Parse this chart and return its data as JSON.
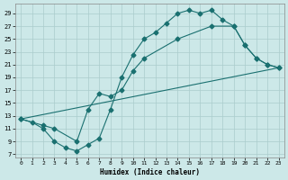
{
  "xlabel": "Humidex (Indice chaleur)",
  "bg_color": "#cce8e8",
  "grid_color": "#aacccc",
  "line_color": "#1a7070",
  "xlim": [
    -0.5,
    23.5
  ],
  "ylim": [
    6.5,
    30.5
  ],
  "xticks": [
    0,
    1,
    2,
    3,
    4,
    5,
    6,
    7,
    8,
    9,
    10,
    11,
    12,
    13,
    14,
    15,
    16,
    17,
    18,
    19,
    20,
    21,
    22,
    23
  ],
  "yticks": [
    7,
    9,
    11,
    13,
    15,
    17,
    19,
    21,
    23,
    25,
    27,
    29
  ],
  "line1_x": [
    0,
    1,
    2,
    3,
    4,
    5,
    6,
    7,
    8,
    9,
    10,
    11,
    12,
    13,
    14,
    15,
    16,
    17,
    18,
    19,
    20,
    21,
    22,
    23
  ],
  "line1_y": [
    12.5,
    12,
    11,
    9,
    8,
    7.5,
    8.5,
    9.5,
    14,
    19,
    22.5,
    25,
    26,
    27.5,
    29,
    29.5,
    29,
    29.5,
    28,
    27,
    24,
    22,
    21,
    20.5
  ],
  "line2_x": [
    0,
    2,
    3,
    5,
    6,
    7,
    8,
    9,
    10,
    11,
    14,
    17,
    19,
    20,
    21,
    22,
    23
  ],
  "line2_y": [
    12.5,
    11.5,
    11,
    9,
    14,
    16.5,
    16,
    17,
    20,
    22,
    25,
    27,
    27,
    24,
    22,
    21,
    20.5
  ],
  "line3_x": [
    0,
    23
  ],
  "line3_y": [
    12.5,
    20.5
  ]
}
